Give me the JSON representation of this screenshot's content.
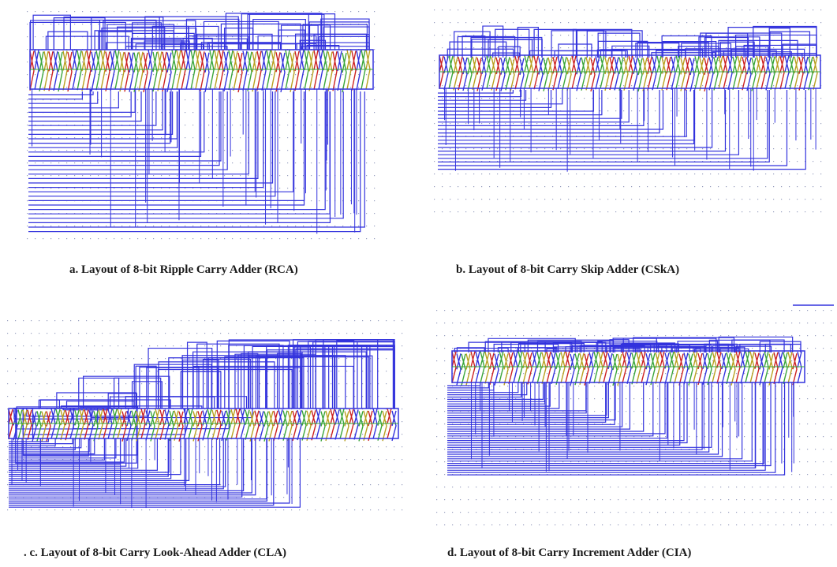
{
  "figure": {
    "panels": [
      {
        "id": "a",
        "caption": "a. Layout of 8-bit Ripple Carry Adder (RCA)"
      },
      {
        "id": "b",
        "caption": "b. Layout of 8-bit Carry Skip Adder  (CSkA)"
      },
      {
        "id": "c",
        "caption": ". c. Layout of 8-bit Carry Look-Ahead Adder  (CLA)"
      },
      {
        "id": "d",
        "caption": "d. Layout of 8-bit Carry Increment Adder (CIA)"
      }
    ],
    "colors": {
      "wire": "#3333dd",
      "cell_red": "#cc2222",
      "cell_green": "#3aa63a",
      "cell_yellow": "#b8a020",
      "grid_dot": "#9aa0c0"
    }
  }
}
